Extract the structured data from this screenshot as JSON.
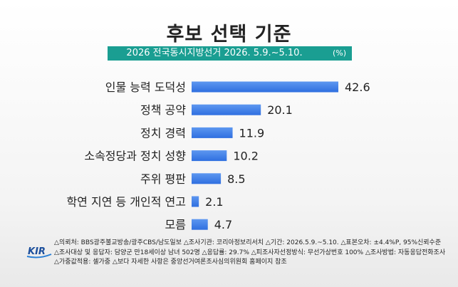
{
  "title": "후보 선택 기준",
  "subtitle": "2026 전국동시지방선거 2026. 5.9.~5.10.",
  "unit": "(%)",
  "chart_data": {
    "type": "bar",
    "orientation": "horizontal",
    "categories": [
      "인물 능력 도덕성",
      "정책 공약",
      "정치 경력",
      "소속정당과 정치 성향",
      "주위 평판",
      "학연 지연 등 개인적 연고",
      "모름"
    ],
    "values": [
      42.6,
      20.1,
      11.9,
      10.2,
      8.5,
      2.1,
      4.7
    ],
    "bar_color": "#2f6fe0",
    "title": "후보 선택 기준"
  },
  "logo": {
    "text": "KIR"
  },
  "footer": {
    "line1": "△의뢰처: BBS광주불교방송/광주CBS/남도일보  △조사기관: 코리아정보리서치  △기간: 2026.5.9.~5.10.  △표본오차: ±4.4%P, 95%신뢰수준",
    "line2": "△조사대상 및 응답자: 담양군 만18세이상 남녀 502명  △응답률: 29.7%  △피조사자선정방식: 무선가상번호 100%  △조사방법: 자동응답전화조사",
    "line3": "△가중값적용: 셀가중  △보다 자세한 사항은 중앙선거여론조사심의위원회 홈페이지 참조"
  }
}
